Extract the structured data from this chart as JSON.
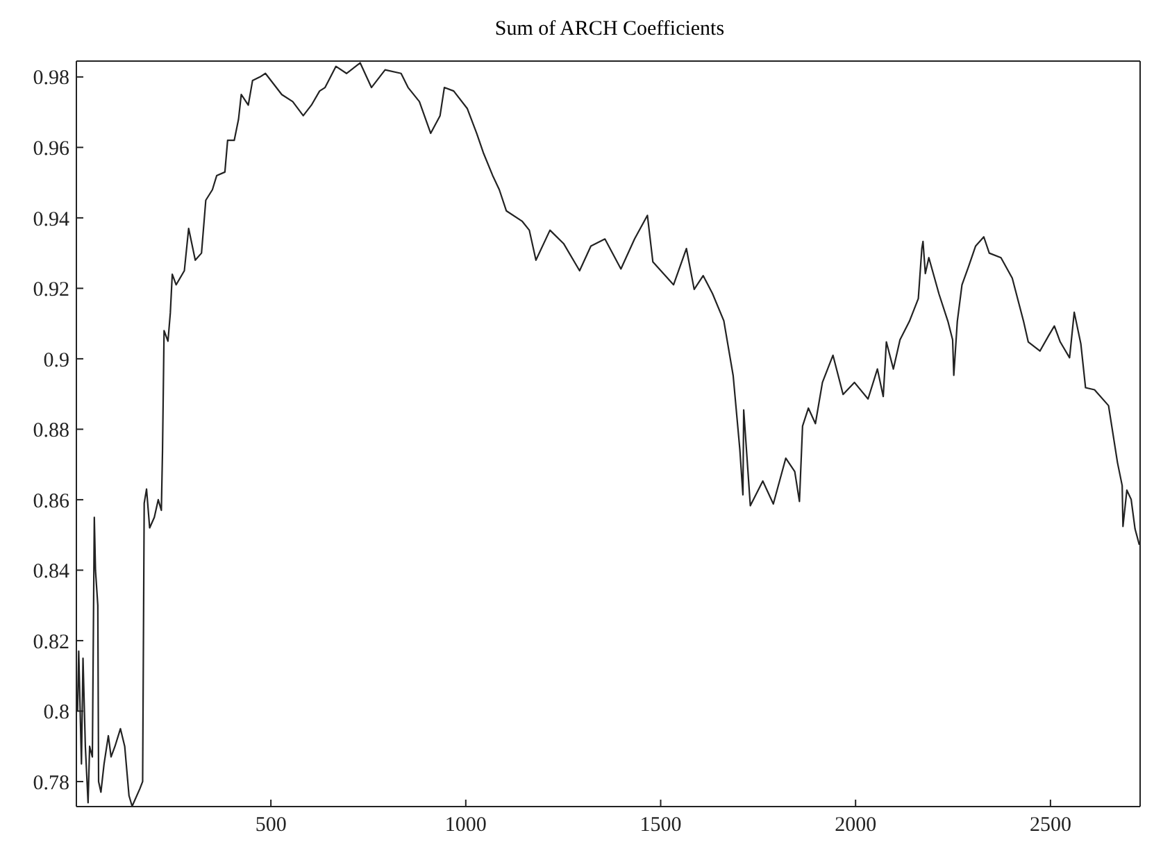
{
  "chart_data": {
    "type": "line",
    "title": "Sum of ARCH Coefficients",
    "x": [
      4,
      7,
      14,
      18,
      24,
      31,
      35,
      42,
      47,
      50,
      56,
      58,
      64,
      72,
      83,
      90,
      100,
      114,
      125,
      136,
      144,
      164,
      171,
      175,
      181,
      189,
      201,
      211,
      219,
      222,
      226,
      236,
      242,
      247,
      257,
      278,
      289,
      306,
      322,
      333,
      350,
      361,
      382,
      389,
      406,
      417,
      424,
      442,
      453,
      472,
      486,
      528,
      556,
      583,
      604,
      625,
      639,
      667,
      694,
      729,
      758,
      793,
      834,
      852,
      881,
      910,
      934,
      945,
      969,
      1004,
      1028,
      1045,
      1069,
      1086,
      1104,
      1145,
      1163,
      1180,
      1216,
      1251,
      1292,
      1321,
      1357,
      1398,
      1433,
      1466,
      1480,
      1533,
      1566,
      1586,
      1609,
      1633,
      1662,
      1686,
      1703,
      1711,
      1713,
      1730,
      1762,
      1789,
      1821,
      1844,
      1856,
      1864,
      1879,
      1897,
      1915,
      1942,
      1968,
      1997,
      2032,
      2056,
      2071,
      2079,
      2097,
      2114,
      2138,
      2161,
      2170,
      2173,
      2179,
      2188,
      2214,
      2237,
      2249,
      2252,
      2261,
      2273,
      2290,
      2308,
      2329,
      2343,
      2373,
      2402,
      2431,
      2443,
      2473,
      2496,
      2510,
      2525,
      2549,
      2561,
      2578,
      2590,
      2613,
      2649,
      2672,
      2684,
      2686,
      2696,
      2707,
      2717,
      2728
    ],
    "series": [
      {
        "color": "#222222",
        "values": [
          0.8,
          0.817,
          0.785,
          0.815,
          0.79,
          0.774,
          0.79,
          0.787,
          0.855,
          0.84,
          0.83,
          0.78,
          0.777,
          0.785,
          0.793,
          0.787,
          0.79,
          0.795,
          0.79,
          0.776,
          0.773,
          0.778,
          0.78,
          0.859,
          0.863,
          0.852,
          0.855,
          0.86,
          0.857,
          0.874,
          0.908,
          0.905,
          0.913,
          0.924,
          0.921,
          0.925,
          0.937,
          0.928,
          0.93,
          0.945,
          0.948,
          0.952,
          0.953,
          0.962,
          0.962,
          0.968,
          0.975,
          0.972,
          0.979,
          0.98,
          0.981,
          0.975,
          0.973,
          0.969,
          0.972,
          0.976,
          0.977,
          0.983,
          0.981,
          0.984,
          0.977,
          0.982,
          0.981,
          0.977,
          0.973,
          0.964,
          0.969,
          0.977,
          0.976,
          0.971,
          0.964,
          0.9585,
          0.952,
          0.948,
          0.942,
          0.939,
          0.9365,
          0.928,
          0.9365,
          0.9327,
          0.925,
          0.932,
          0.934,
          0.9255,
          0.934,
          0.9407,
          0.9275,
          0.921,
          0.9313,
          0.9197,
          0.9236,
          0.9185,
          0.9108,
          0.8952,
          0.8744,
          0.8614,
          0.8855,
          0.8583,
          0.8653,
          0.8588,
          0.8718,
          0.868,
          0.8595,
          0.8809,
          0.886,
          0.8816,
          0.8933,
          0.901,
          0.8899,
          0.8933,
          0.8886,
          0.8971,
          0.8893,
          0.9048,
          0.8971,
          0.9054,
          0.9106,
          0.9171,
          0.9313,
          0.9333,
          0.9242,
          0.9287,
          0.9184,
          0.9106,
          0.9054,
          0.8953,
          0.9106,
          0.921,
          0.9262,
          0.932,
          0.9346,
          0.93,
          0.9287,
          0.9229,
          0.9106,
          0.9048,
          0.9022,
          0.9067,
          0.9093,
          0.9048,
          0.9003,
          0.9132,
          0.9042,
          0.8918,
          0.8912,
          0.8867,
          0.8705,
          0.864,
          0.8524,
          0.8627,
          0.8601,
          0.8517,
          0.8472
        ]
      }
    ],
    "xlim": [
      1,
      2730
    ],
    "xticks": [
      500,
      1000,
      1500,
      2000,
      2500
    ],
    "ylim": [
      0.7729,
      0.9845
    ],
    "yticks": [
      0.78,
      0.8,
      0.82,
      0.84,
      0.86,
      0.88,
      0.9,
      0.92,
      0.94,
      0.96,
      0.98
    ],
    "grid": false
  }
}
